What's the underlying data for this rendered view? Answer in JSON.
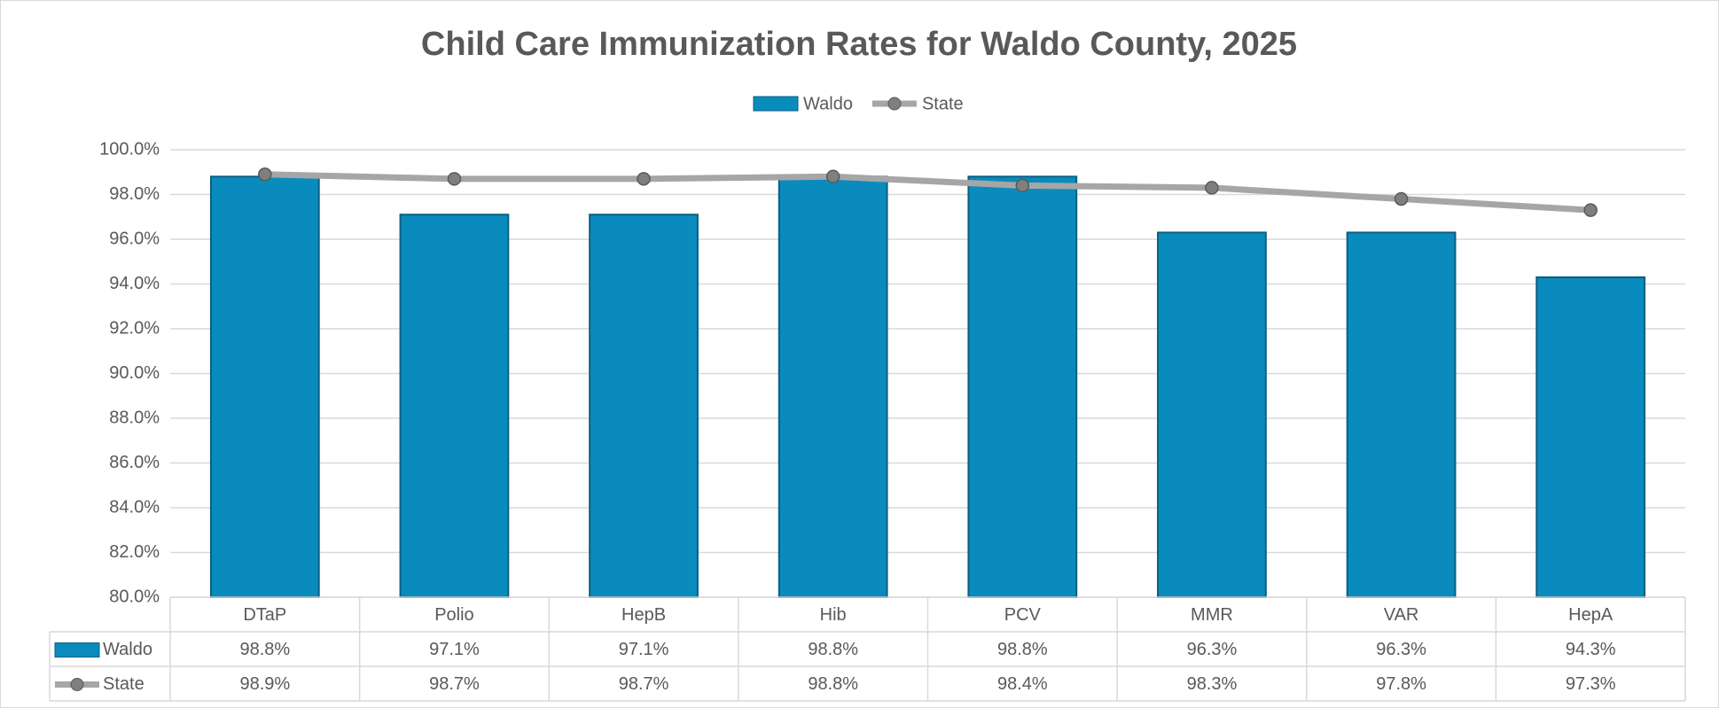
{
  "chart_data": {
    "type": "bar",
    "title": "Child Care Immunization Rates for Waldo County, 2025",
    "categories": [
      "DTaP",
      "Polio",
      "HepB",
      "Hib",
      "PCV",
      "MMR",
      "VAR",
      "HepA"
    ],
    "series": [
      {
        "name": "Waldo",
        "type": "bar",
        "color": "#0a8bbd",
        "values": [
          98.8,
          97.1,
          97.1,
          98.8,
          98.8,
          96.3,
          96.3,
          94.3
        ],
        "value_labels": [
          "98.8%",
          "97.1%",
          "97.1%",
          "98.8%",
          "98.8%",
          "96.3%",
          "96.3%",
          "94.3%"
        ]
      },
      {
        "name": "State",
        "type": "line",
        "color": "#a6a6a6",
        "values": [
          98.9,
          98.7,
          98.7,
          98.8,
          98.4,
          98.3,
          97.8,
          97.3
        ],
        "value_labels": [
          "98.9%",
          "98.7%",
          "98.7%",
          "98.8%",
          "98.4%",
          "98.3%",
          "97.8%",
          "97.3%"
        ]
      }
    ],
    "ylim": [
      80,
      100
    ],
    "yticks": [
      {
        "value": 80,
        "label": "80.0%"
      },
      {
        "value": 82,
        "label": "82.0%"
      },
      {
        "value": 84,
        "label": "84.0%"
      },
      {
        "value": 86,
        "label": "86.0%"
      },
      {
        "value": 88,
        "label": "88.0%"
      },
      {
        "value": 90,
        "label": "90.0%"
      },
      {
        "value": 92,
        "label": "92.0%"
      },
      {
        "value": 94,
        "label": "94.0%"
      },
      {
        "value": 96,
        "label": "96.0%"
      },
      {
        "value": 98,
        "label": "98.0%"
      },
      {
        "value": 100,
        "label": "100.0%"
      }
    ],
    "grid": true,
    "legend": "top",
    "data_table": true
  }
}
